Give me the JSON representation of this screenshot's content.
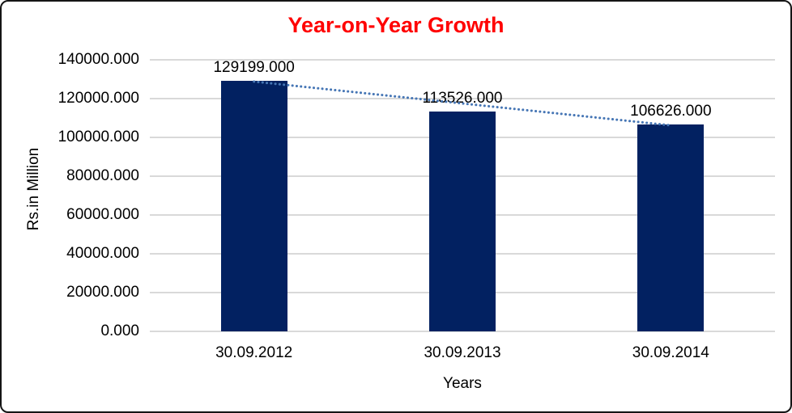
{
  "chart_data": {
    "type": "bar",
    "title": "Year-on-Year Growth",
    "xlabel": "Years",
    "ylabel": "Rs.in Million",
    "categories": [
      "30.09.2012",
      "30.09.2013",
      "30.09.2014"
    ],
    "values": [
      129199,
      113526,
      106626
    ],
    "data_labels": [
      "129199.000",
      "113526.000",
      "106626.000"
    ],
    "ytick_labels": [
      "140000.000",
      "120000.000",
      "100000.000",
      "80000.000",
      "60000.000",
      "40000.000",
      "20000.000",
      "0.000"
    ],
    "ylim": [
      0,
      140000
    ],
    "ytick_step": 20000,
    "grid": "horizontal",
    "legend": "none",
    "trendline": {
      "type": "linear",
      "style": "dotted",
      "spans": "first-to-last-bar-top"
    },
    "colors": {
      "bar": "#022161",
      "gridline": "#d9d9d9",
      "title": "#ff0000",
      "axis_text": "#000000",
      "trendline": "#4676b5"
    }
  }
}
